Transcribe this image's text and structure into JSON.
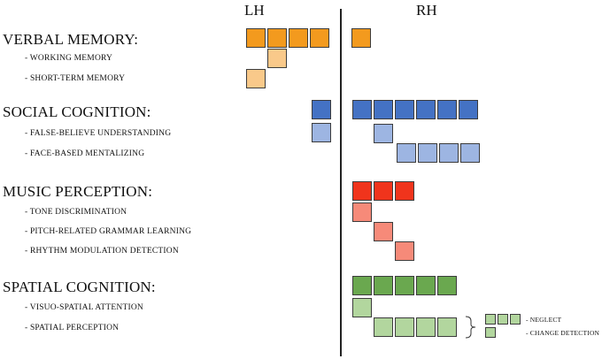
{
  "headers": {
    "left": "LH",
    "right": "RH"
  },
  "categories": [
    {
      "title": "VERBAL MEMORY:",
      "subs": [
        "- WORKING MEMORY",
        "- SHORT-TERM MEMORY"
      ]
    },
    {
      "title": "SOCIAL COGNITION:",
      "subs": [
        "- FALSE-BELIEVE UNDERSTANDING",
        "- FACE-BASED MENTALIZING"
      ]
    },
    {
      "title": "MUSIC PERCEPTION:",
      "subs": [
        "- TONE DISCRIMINATION",
        "- PITCH-RELATED GRAMMAR LEARNING",
        "- RHYTHM MODULATION DETECTION"
      ]
    },
    {
      "title": "SPATIAL COGNITION:",
      "subs": [
        "- VISUO-SPATIAL ATTENTION",
        "- SPATIAL PERCEPTION"
      ]
    }
  ],
  "legend": {
    "neglect": "- NEGLECT",
    "change": "- CHANGE DETECTION"
  },
  "colors": {
    "orange": "#f39a1e",
    "orange_light": "#f9c98a",
    "blue": "#4472c4",
    "blue_light": "#9db5e2",
    "red": "#f0341c",
    "red_light": "#f68a79",
    "green": "#6aa84f",
    "green_light": "#b2d69e"
  }
}
